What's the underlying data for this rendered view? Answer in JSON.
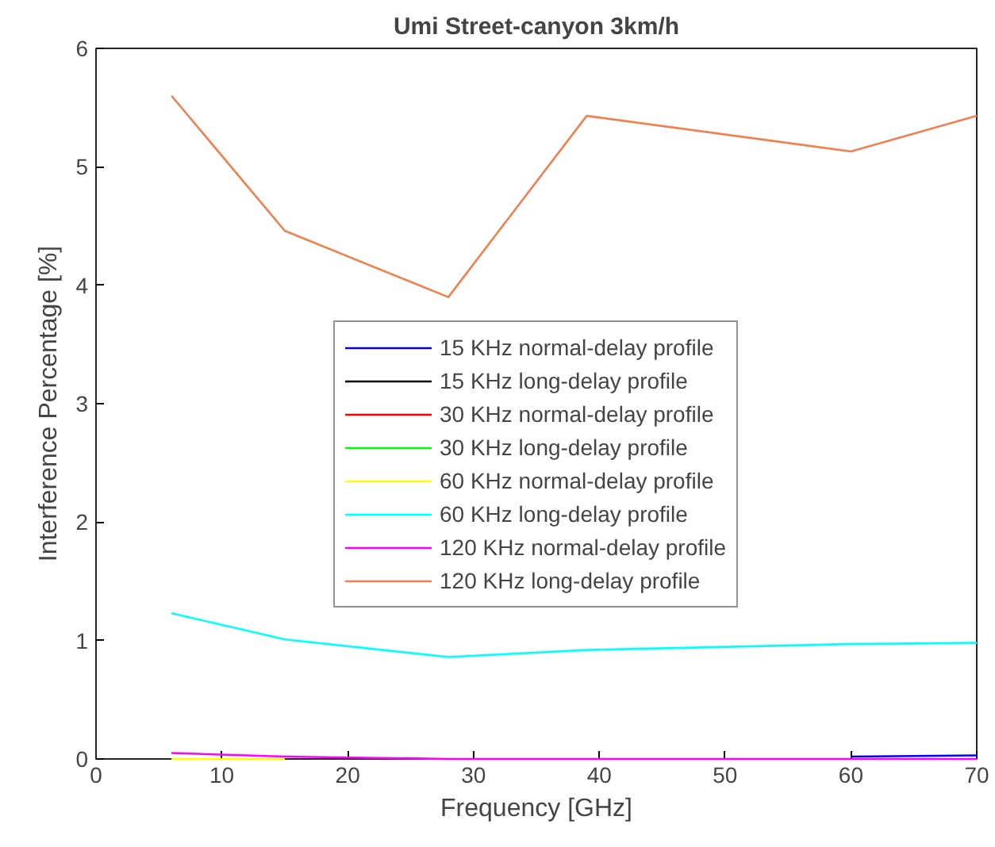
{
  "chart_data": {
    "type": "line",
    "title": "Umi Street-canyon 3km/h",
    "xlabel": "Frequency [GHz]",
    "ylabel": "Interference Percentage [%]",
    "x": [
      6,
      15,
      28,
      39,
      60,
      70
    ],
    "series": [
      {
        "name": "15 KHz normal-delay profile",
        "color": "#0000ff",
        "values": [
          null,
          null,
          null,
          null,
          0.02,
          0.03
        ]
      },
      {
        "name": "15 KHz long-delay profile",
        "color": "#000000",
        "values": [
          null,
          null,
          null,
          null,
          null,
          null
        ]
      },
      {
        "name": "30 KHz normal-delay profile",
        "color": "#ff0000",
        "values": [
          null,
          null,
          null,
          null,
          null,
          null
        ]
      },
      {
        "name": "30 KHz long-delay profile",
        "color": "#00ff00",
        "values": [
          null,
          null,
          null,
          null,
          null,
          null
        ]
      },
      {
        "name": "60 KHz normal-delay profile",
        "color": "#ffff00",
        "values": [
          0,
          0,
          null,
          null,
          null,
          null
        ]
      },
      {
        "name": "60 KHz long-delay profile",
        "color": "#00ffff",
        "values": [
          1.23,
          1.01,
          0.86,
          0.92,
          0.97,
          0.98
        ]
      },
      {
        "name": "120 KHz normal-delay profile",
        "color": "#ff00ff",
        "values": [
          0.05,
          0.02,
          0,
          0,
          0,
          0
        ]
      },
      {
        "name": "120 KHz long-delay profile",
        "color": "#f08050",
        "values": [
          5.6,
          4.46,
          3.9,
          5.43,
          5.13,
          5.43
        ]
      }
    ],
    "xlim": [
      0,
      70
    ],
    "xticks": [
      0,
      10,
      20,
      30,
      40,
      50,
      60,
      70
    ],
    "ylim": [
      0,
      6
    ],
    "yticks": [
      0,
      1,
      2,
      3,
      4,
      5,
      6
    ],
    "grid": false,
    "legend": "center",
    "marker": "none",
    "line_style": "solid"
  }
}
